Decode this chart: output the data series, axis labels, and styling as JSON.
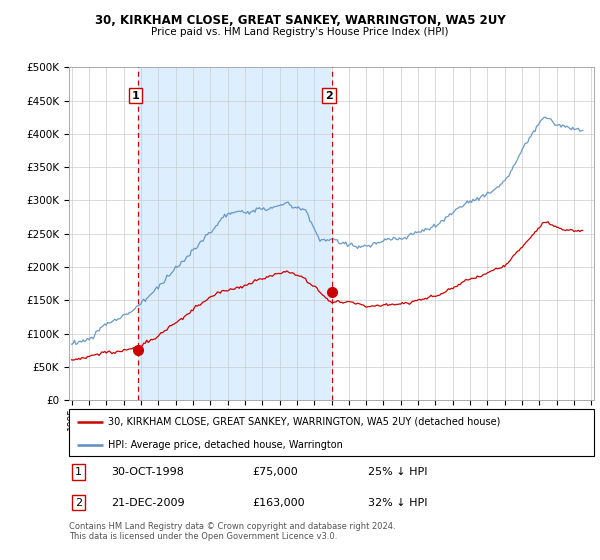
{
  "title": "30, KIRKHAM CLOSE, GREAT SANKEY, WARRINGTON, WA5 2UY",
  "subtitle": "Price paid vs. HM Land Registry's House Price Index (HPI)",
  "sale1_date": "30-OCT-1998",
  "sale1_price": 75000,
  "sale1_label": "1",
  "sale1_pct": "25% ↓ HPI",
  "sale2_date": "21-DEC-2009",
  "sale2_price": 163000,
  "sale2_label": "2",
  "sale2_pct": "32% ↓ HPI",
  "legend_house": "30, KIRKHAM CLOSE, GREAT SANKEY, WARRINGTON, WA5 2UY (detached house)",
  "legend_hpi": "HPI: Average price, detached house, Warrington",
  "footnote": "Contains HM Land Registry data © Crown copyright and database right 2024.\nThis data is licensed under the Open Government Licence v3.0.",
  "house_color": "#cc0000",
  "hpi_color": "#7dadd4",
  "hpi_color_dark": "#5a8fbf",
  "vline_color": "#cc0000",
  "shade_color": "#ddeeff",
  "ylim": [
    0,
    500000
  ],
  "yticks": [
    0,
    50000,
    100000,
    150000,
    200000,
    250000,
    300000,
    350000,
    400000,
    450000,
    500000
  ],
  "start_year": 1995,
  "end_year": 2025
}
